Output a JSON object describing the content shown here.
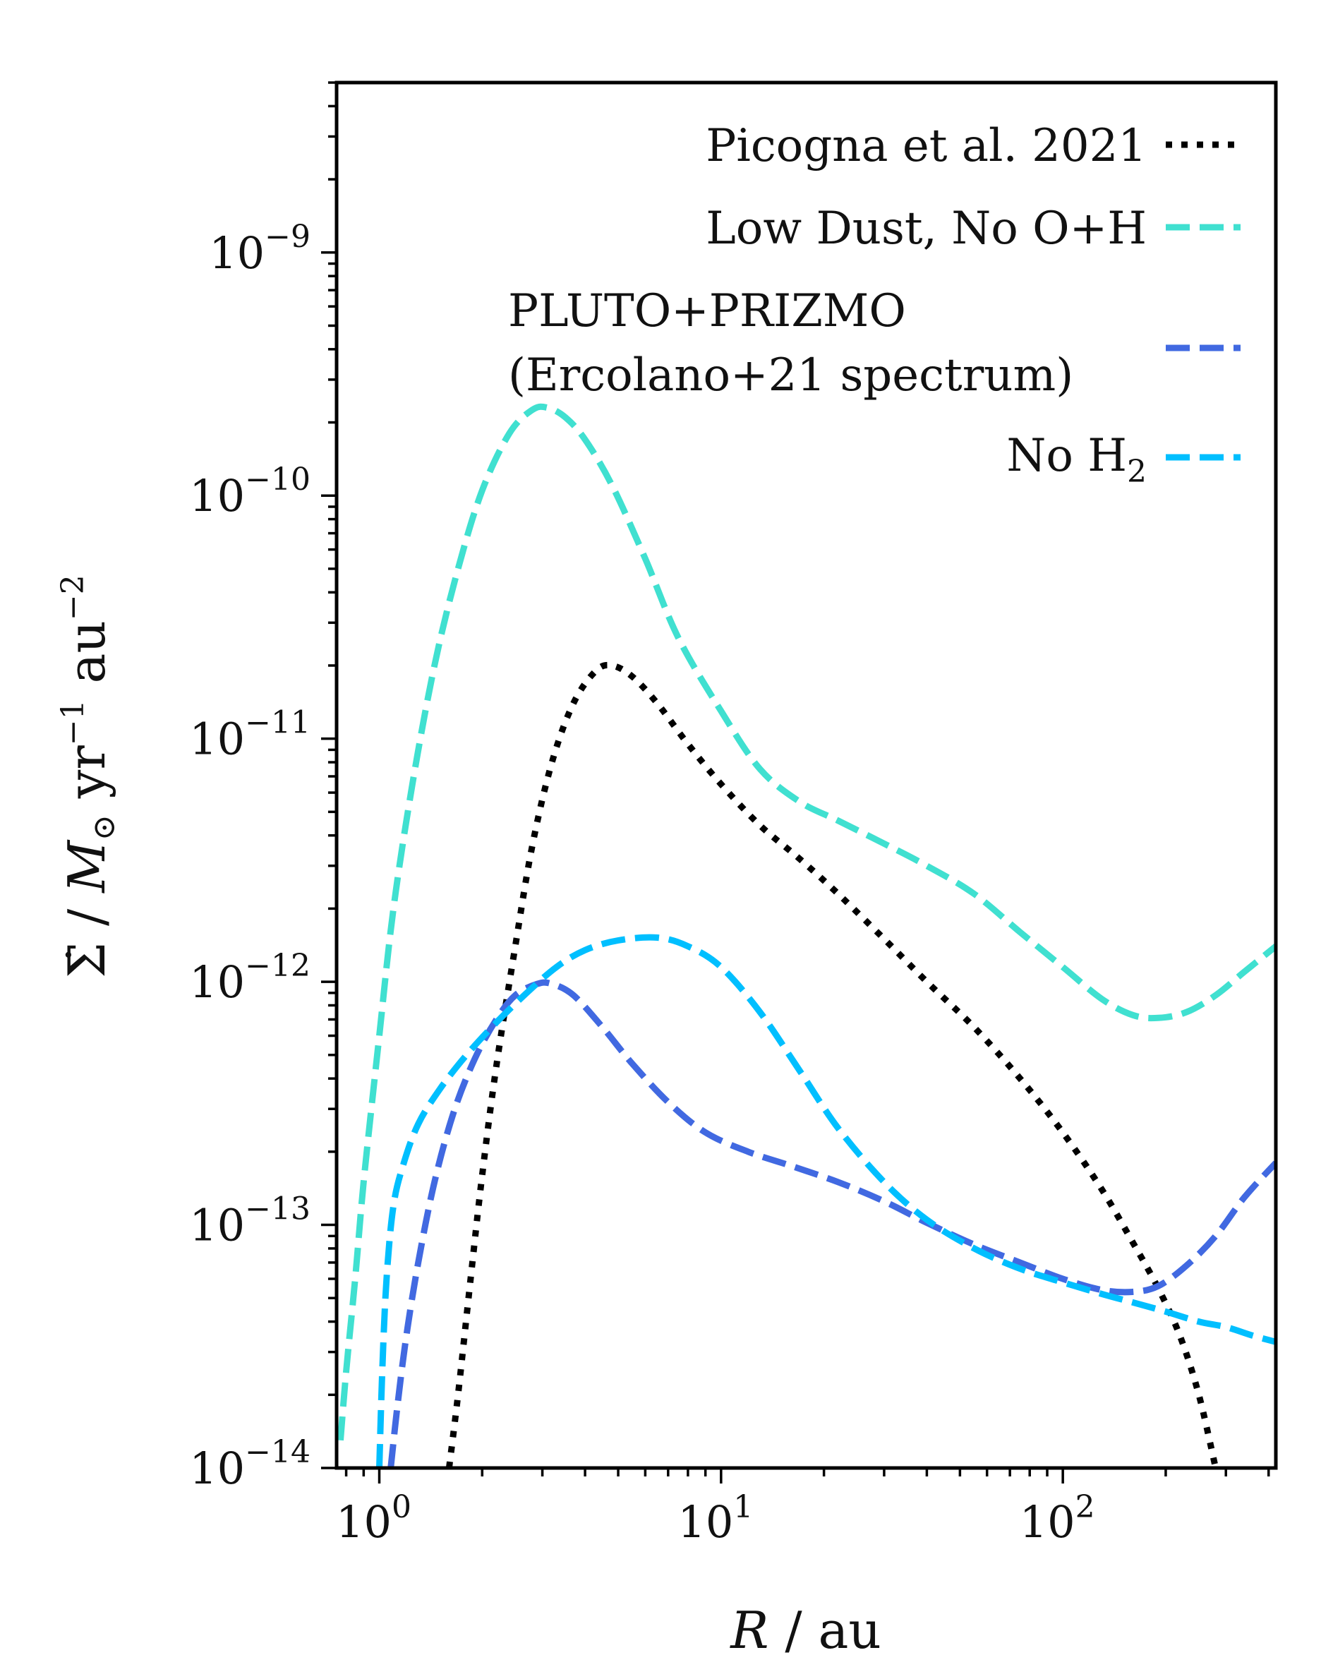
{
  "chart_data": {
    "type": "line",
    "xscale": "log",
    "yscale": "log",
    "xlim": [
      0.75,
      420
    ],
    "ylim": [
      1e-14,
      5e-09
    ],
    "xlabel": {
      "italic": "R",
      "rest": " / au"
    },
    "ylabel": {
      "prefix": "Σ̇ / ",
      "mass": "M",
      "mass_sub": "⊙",
      "yr": " yr",
      "yr_exp": "−1",
      "au": " au",
      "au_exp": "−2"
    },
    "xticks": [
      {
        "value": 1,
        "base": "10",
        "exp": "0"
      },
      {
        "value": 10,
        "base": "10",
        "exp": "1"
      },
      {
        "value": 100,
        "base": "10",
        "exp": "2"
      }
    ],
    "yticks": [
      {
        "value": 1e-14,
        "base": "10",
        "exp": "−14"
      },
      {
        "value": 1e-13,
        "base": "10",
        "exp": "−13"
      },
      {
        "value": 1e-12,
        "base": "10",
        "exp": "−12"
      },
      {
        "value": 1e-11,
        "base": "10",
        "exp": "−11"
      },
      {
        "value": 1e-10,
        "base": "10",
        "exp": "−10"
      },
      {
        "value": 1e-09,
        "base": "10",
        "exp": "−9"
      }
    ],
    "legend_position": "top-right",
    "series": [
      {
        "name": "Picogna et al. 2021",
        "color": "#000000",
        "style": "dotted",
        "x": [
          1.6,
          1.7,
          1.85,
          2.0,
          2.2,
          2.5,
          2.8,
          3.2,
          3.7,
          4.3,
          4.8,
          5.5,
          6.5,
          8,
          10,
          13,
          17,
          22,
          30,
          40,
          55,
          75,
          100,
          130,
          160,
          190,
          220,
          250,
          280
        ],
        "y": [
          1e-14,
          2e-14,
          6e-14,
          1.6e-13,
          4.5e-13,
          1.4e-12,
          3.6e-12,
          8e-12,
          1.4e-11,
          1.9e-11,
          2e-11,
          1.8e-11,
          1.4e-11,
          9.5e-12,
          6.5e-12,
          4.4e-12,
          3.2e-12,
          2.3e-12,
          1.5e-12,
          1e-12,
          6.5e-13,
          4e-13,
          2.4e-13,
          1.4e-13,
          8.5e-14,
          5.5e-14,
          3.5e-14,
          2e-14,
          1e-14
        ]
      },
      {
        "name": "Low Dust, No O+H",
        "color": "#40e0d0",
        "style": "dashed",
        "x": [
          0.77,
          0.8,
          0.85,
          0.9,
          1.0,
          1.1,
          1.25,
          1.45,
          1.7,
          2.0,
          2.4,
          2.8,
          3.1,
          3.5,
          4.0,
          4.8,
          6.0,
          7.5,
          10,
          13,
          17,
          22,
          30,
          40,
          55,
          75,
          100,
          130,
          160,
          190,
          230,
          280,
          340,
          420
        ],
        "y": [
          1.3e-14,
          2.5e-14,
          6e-14,
          1.5e-13,
          6e-13,
          2e-12,
          6.5e-12,
          2e-11,
          5e-11,
          1.05e-10,
          1.8e-10,
          2.25e-10,
          2.3e-10,
          2.1e-10,
          1.7e-10,
          1.1e-10,
          5.5e-11,
          2.6e-11,
          1.3e-11,
          7.5e-12,
          5.5e-12,
          4.6e-12,
          3.7e-12,
          3e-12,
          2.3e-12,
          1.6e-12,
          1.15e-12,
          8.5e-13,
          7.3e-13,
          7.1e-13,
          7.5e-13,
          8.8e-13,
          1.1e-12,
          1.4e-12
        ]
      },
      {
        "name": "PLUTO+PRIZMO\n(Ercolano+21 spectrum)",
        "line1": "PLUTO+PRIZMO",
        "line2": "(Ercolano+21 spectrum)",
        "color": "#4169e1",
        "style": "dashed",
        "x": [
          1.08,
          1.13,
          1.2,
          1.3,
          1.45,
          1.65,
          1.9,
          2.2,
          2.5,
          2.9,
          3.2,
          3.7,
          4.5,
          5.5,
          7,
          9,
          12,
          16,
          22,
          30,
          40,
          55,
          75,
          100,
          130,
          160,
          190,
          230,
          280,
          340,
          420
        ],
        "y": [
          1e-14,
          1.8e-14,
          3.5e-14,
          7e-14,
          1.5e-13,
          2.9e-13,
          4.8e-13,
          7e-13,
          8.8e-13,
          9.8e-13,
          9.8e-13,
          8.8e-13,
          6.5e-13,
          4.6e-13,
          3.2e-13,
          2.4e-13,
          2e-13,
          1.75e-13,
          1.5e-13,
          1.25e-13,
          1.02e-13,
          8.3e-14,
          7e-14,
          6e-14,
          5.4e-14,
          5.3e-14,
          5.6e-14,
          6.8e-14,
          9e-14,
          1.3e-13,
          1.8e-13
        ]
      },
      {
        "name": "No H₂",
        "text": "No H",
        "sub": "2",
        "color": "#00bfff",
        "style": "dashed",
        "x": [
          1.0,
          1.02,
          1.05,
          1.1,
          1.18,
          1.3,
          1.5,
          1.8,
          2.2,
          2.7,
          3.3,
          4.0,
          5.0,
          6.5,
          8,
          10,
          13,
          17,
          22,
          30,
          40,
          55,
          75,
          100,
          130,
          160,
          200,
          250,
          300,
          360,
          420
        ],
        "y": [
          1e-14,
          2.5e-14,
          6e-14,
          1.2e-13,
          1.8e-13,
          2.6e-13,
          3.6e-13,
          5e-13,
          6.8e-13,
          9e-13,
          1.15e-12,
          1.35e-12,
          1.48e-12,
          1.52e-12,
          1.4e-12,
          1.15e-12,
          7.5e-13,
          4.3e-13,
          2.5e-13,
          1.5e-13,
          1.05e-13,
          8e-14,
          6.6e-14,
          5.8e-14,
          5.2e-14,
          4.8e-14,
          4.4e-14,
          4e-14,
          3.8e-14,
          3.5e-14,
          3.3e-14
        ]
      }
    ]
  }
}
